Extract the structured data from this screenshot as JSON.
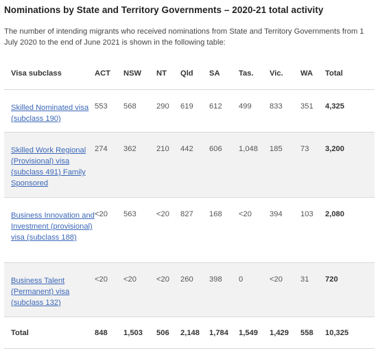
{
  "page": {
    "title": "Nominations by State and Territory Governments – 2020-21 total activity",
    "intro": "The number of intending migrants who received nominations from State and Territory Governments from 1 July 2020 to the end of June 2021 is shown in the following table:"
  },
  "table": {
    "headers": [
      "Visa subclass",
      "ACT",
      "NSW",
      "NT",
      "Qld",
      "SA",
      "Tas.",
      "Vic.",
      "WA",
      "Total"
    ],
    "rows": [
      {
        "label": "Skilled Nominated visa (subclass 190)",
        "cells": [
          "553",
          "568",
          "290",
          "619",
          "612",
          "499",
          "833",
          "351"
        ],
        "total": "4,325"
      },
      {
        "label": "Skilled Work Regional (Provisional) visa (subclass 491) Family Sponsored",
        "cells": [
          "274",
          "362",
          "210",
          "442",
          "606",
          "1,048",
          "185",
          "73"
        ],
        "total": "3,200"
      },
      {
        "label": "Business Innovation and Investment (provisional) visa (subclass 188)",
        "cells": [
          "<20",
          "563",
          "<20",
          "827",
          "168",
          "<20",
          "394",
          "103"
        ],
        "total": "2,080"
      },
      {
        "label": "Business Talent (Permanent) visa (subclass 132)",
        "cells": [
          "<20",
          "<20",
          "<20",
          "260",
          "398",
          "0",
          "<20",
          "31"
        ],
        "total": "720"
      }
    ],
    "total_row": {
      "label": "Total",
      "cells": [
        "848",
        "1,503",
        "506",
        "2,148",
        "1,784",
        "1,549",
        "1,429",
        "558"
      ],
      "total": "10,325"
    }
  },
  "colors": {
    "link": "#3a67b8",
    "row_shade": "#f2f2f2",
    "border": "#d8d8d8"
  }
}
